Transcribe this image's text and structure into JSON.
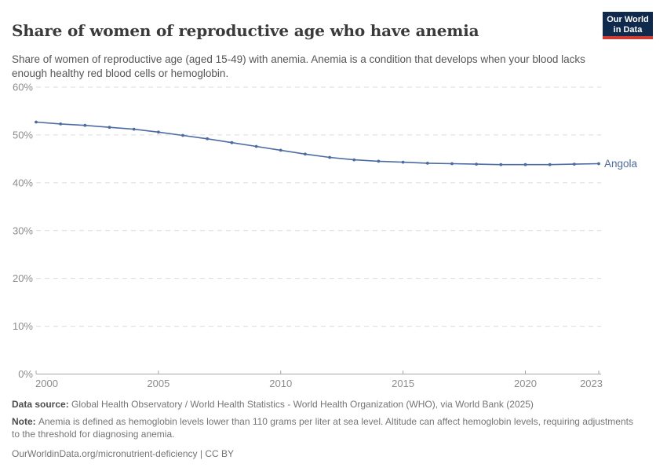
{
  "header": {
    "title": "Share of women of reproductive age who have anemia",
    "subtitle": "Share of women of reproductive age (aged 15-49) with anemia. Anemia is a condition that develops when your blood lacks enough healthy red blood cells or hemoglobin.",
    "logo": {
      "line1": "Our World",
      "line2": "in Data",
      "bg_color": "#102a4e",
      "accent_color": "#d23a2f"
    }
  },
  "chart_data": {
    "type": "line",
    "title": "Share of women of reproductive age who have anemia",
    "xlabel": "",
    "ylabel": "",
    "x": [
      2000,
      2001,
      2002,
      2003,
      2004,
      2005,
      2006,
      2007,
      2008,
      2009,
      2010,
      2011,
      2012,
      2013,
      2014,
      2015,
      2016,
      2017,
      2018,
      2019,
      2020,
      2021,
      2022,
      2023
    ],
    "series": [
      {
        "name": "Angola",
        "color": "#4d6ba3",
        "values": [
          52.7,
          52.3,
          52.0,
          51.6,
          51.2,
          50.6,
          49.9,
          49.2,
          48.4,
          47.6,
          46.8,
          46.0,
          45.3,
          44.8,
          44.5,
          44.3,
          44.1,
          44.0,
          43.9,
          43.8,
          43.8,
          43.8,
          43.9,
          44.0
        ]
      }
    ],
    "ylim": [
      0,
      60
    ],
    "yticks": [
      0,
      10,
      20,
      30,
      40,
      50,
      60
    ],
    "ytick_labels": [
      "0%",
      "10%",
      "20%",
      "30%",
      "40%",
      "50%",
      "60%"
    ],
    "xticks": [
      2000,
      2005,
      2010,
      2015,
      2020,
      2023
    ],
    "grid": "horizontal-dashed",
    "legend": "end-of-line-label",
    "colors": {
      "gridline": "#dcdcdc",
      "axis": "#a6a6a6",
      "tick_label": "#8c8c8c"
    }
  },
  "footer": {
    "datasource_label": "Data source: ",
    "datasource_text": "Global Health Observatory / World Health Statistics - World Health Organization (WHO), via World Bank (2025)",
    "note_label": "Note: ",
    "note_text": "Anemia is defined as hemoglobin levels lower than 110 grams per liter at sea level. Altitude can affect hemoglobin levels, requiring adjustments to the threshold for diagnosing anemia.",
    "link": "OurWorldinData.org/micronutrient-deficiency",
    "license": " | CC BY"
  }
}
